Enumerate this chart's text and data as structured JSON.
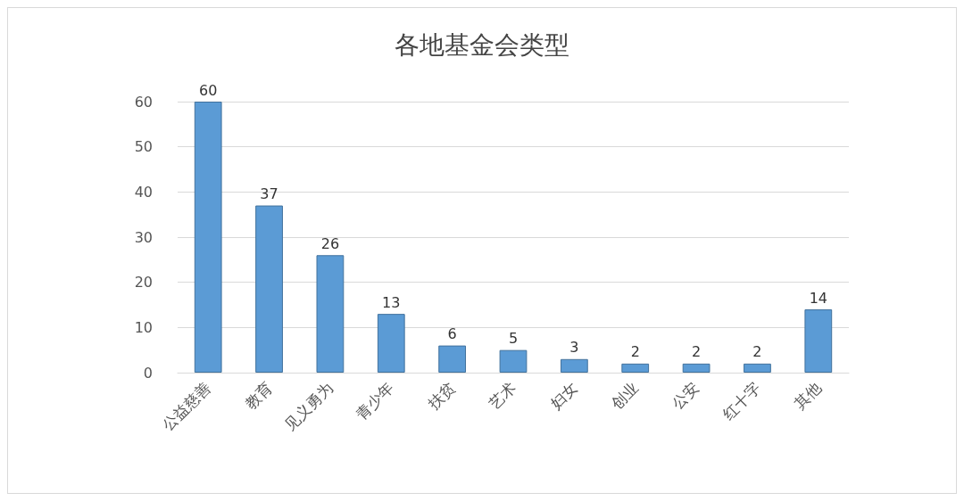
{
  "chart_data": {
    "type": "bar",
    "title": "各地基金会类型",
    "categories": [
      "公益慈善",
      "教育",
      "见义勇为",
      "青少年",
      "扶贫",
      "艺术",
      "妇女",
      "创业",
      "公安",
      "红十字",
      "其他"
    ],
    "values": [
      60,
      37,
      26,
      13,
      6,
      5,
      3,
      2,
      2,
      2,
      14
    ],
    "color": "#5b9bd5",
    "ylim": [
      0,
      60
    ],
    "yticks": [
      0,
      10,
      20,
      30,
      40,
      50,
      60
    ],
    "grid": "y",
    "data_labels": true
  }
}
